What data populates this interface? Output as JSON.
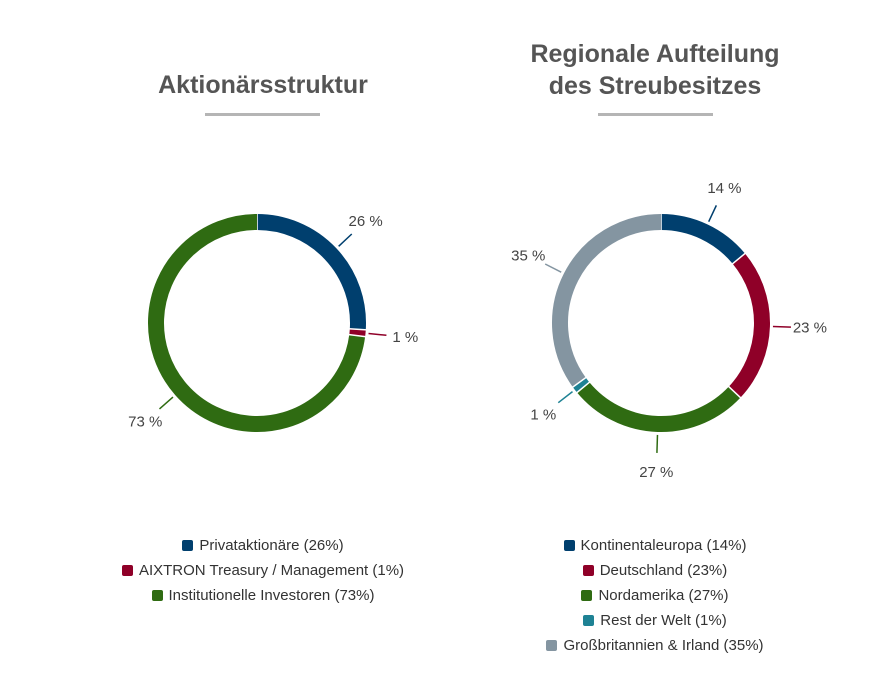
{
  "chart_data": [
    {
      "type": "pie",
      "donut": true,
      "title": "Aktionärsstruktur",
      "slices": [
        {
          "label": "Privataktionäre (26%)",
          "value": 26,
          "data_label": "26 %",
          "color": "#003f6e"
        },
        {
          "label": "AIXTRON Treasury / Management (1%)",
          "value": 1,
          "data_label": "1 %",
          "color": "#8f0028"
        },
        {
          "label": "Institutionelle Investoren (73%)",
          "value": 73,
          "data_label": "73 %",
          "color": "#2f6b12"
        }
      ],
      "legend_placement": "bottom"
    },
    {
      "type": "pie",
      "donut": true,
      "title": "Regionale Aufteilung des Streubesitzes",
      "title_lines": [
        "Regionale Aufteilung",
        "des Streubesitzes"
      ],
      "slices": [
        {
          "label": "Kontinentaleuropa (14%)",
          "value": 14,
          "data_label": "14 %",
          "color": "#003f6e"
        },
        {
          "label": "Deutschland (23%)",
          "value": 23,
          "data_label": "23 %",
          "color": "#8f0028"
        },
        {
          "label": "Nordamerika (27%)",
          "value": 27,
          "data_label": "27 %",
          "color": "#2f6b12"
        },
        {
          "label": "Rest der Welt (1%)",
          "value": 1,
          "data_label": "1 %",
          "color": "#1e8294"
        },
        {
          "label": "Großbritannien & Irland (35%)",
          "value": 35,
          "data_label": "35 %",
          "color": "#8495a1"
        }
      ],
      "legend_placement": "bottom"
    }
  ]
}
